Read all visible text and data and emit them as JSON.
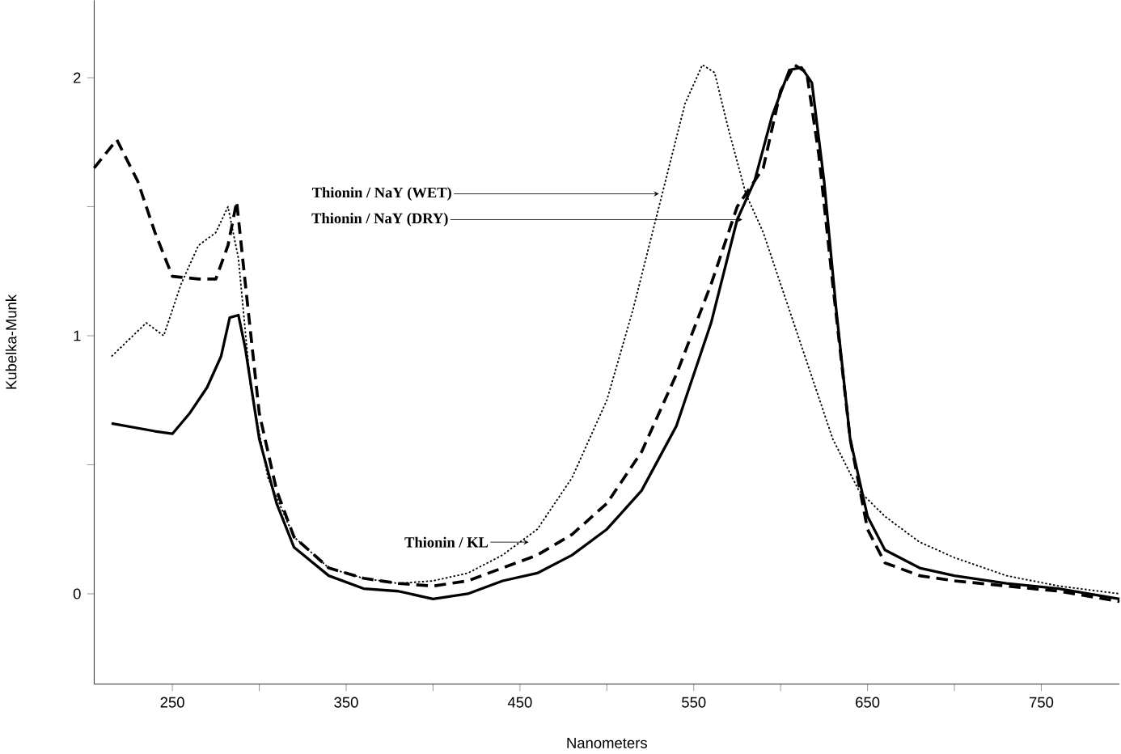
{
  "chart_data": {
    "type": "line",
    "xlabel": "Nanometers",
    "ylabel": "Kubelka-Munk",
    "xlim": [
      205,
      795
    ],
    "ylim": [
      -0.35,
      2.3
    ],
    "xticks": [
      250,
      {
        "value": 300,
        "label": null
      },
      350,
      {
        "value": 400,
        "label": null
      },
      450,
      {
        "value": 500,
        "label": null
      },
      550,
      {
        "value": 600,
        "label": null
      },
      650,
      {
        "value": 700,
        "label": null
      },
      750
    ],
    "yticks": [
      0,
      {
        "value": 0.5,
        "label": null
      },
      1,
      {
        "value": 1.5,
        "label": null
      },
      2
    ],
    "marker": "none",
    "grid": false,
    "series": [
      {
        "color": "#000000",
        "line_style": "solid",
        "x": [
          215,
          240,
          250,
          260,
          270,
          278,
          283,
          288,
          292,
          300,
          310,
          320,
          340,
          360,
          380,
          400,
          420,
          440,
          460,
          480,
          500,
          520,
          540,
          560,
          575,
          585,
          595,
          605,
          612,
          618,
          625,
          632,
          640,
          650,
          660,
          680,
          700,
          730,
          760,
          795
        ],
        "values": [
          0.66,
          0.63,
          0.62,
          0.7,
          0.8,
          0.92,
          1.07,
          1.08,
          0.95,
          0.6,
          0.35,
          0.18,
          0.07,
          0.02,
          0.01,
          -0.02,
          0.0,
          0.05,
          0.08,
          0.15,
          0.25,
          0.4,
          0.65,
          1.05,
          1.45,
          1.6,
          1.85,
          2.03,
          2.04,
          1.98,
          1.6,
          1.1,
          0.6,
          0.3,
          0.17,
          0.1,
          0.07,
          0.04,
          0.02,
          -0.02
        ]
      },
      {
        "color": "#000000",
        "line_style": "dashed",
        "x": [
          205,
          218,
          230,
          240,
          250,
          265,
          275,
          282,
          287,
          292,
          300,
          310,
          320,
          340,
          360,
          380,
          400,
          420,
          440,
          460,
          480,
          500,
          520,
          540,
          560,
          575,
          590,
          600,
          608,
          615,
          622,
          630,
          640,
          650,
          660,
          680,
          700,
          730,
          760,
          795
        ],
        "values": [
          1.65,
          1.76,
          1.6,
          1.4,
          1.23,
          1.22,
          1.22,
          1.35,
          1.52,
          1.2,
          0.7,
          0.4,
          0.22,
          0.1,
          0.06,
          0.04,
          0.03,
          0.05,
          0.1,
          0.15,
          0.23,
          0.35,
          0.55,
          0.85,
          1.2,
          1.5,
          1.65,
          1.95,
          2.05,
          2.02,
          1.7,
          1.2,
          0.6,
          0.25,
          0.12,
          0.07,
          0.05,
          0.03,
          0.01,
          -0.03
        ]
      },
      {
        "color": "#000000",
        "line_style": "dotted",
        "x": [
          215,
          235,
          245,
          255,
          265,
          275,
          282,
          288,
          295,
          305,
          320,
          340,
          360,
          380,
          400,
          420,
          440,
          460,
          480,
          500,
          515,
          530,
          545,
          555,
          562,
          570,
          580,
          590,
          600,
          615,
          630,
          645,
          660,
          680,
          700,
          730,
          760,
          795
        ],
        "values": [
          0.92,
          1.05,
          1.0,
          1.2,
          1.35,
          1.4,
          1.5,
          1.3,
          0.8,
          0.45,
          0.22,
          0.1,
          0.06,
          0.04,
          0.05,
          0.08,
          0.15,
          0.25,
          0.45,
          0.75,
          1.1,
          1.5,
          1.9,
          2.05,
          2.02,
          1.8,
          1.55,
          1.4,
          1.2,
          0.9,
          0.6,
          0.4,
          0.3,
          0.2,
          0.14,
          0.07,
          0.03,
          0.0
        ]
      }
    ],
    "annotations": [
      {
        "text": "Thionin / NaY (WET)",
        "x": 530,
        "y": 1.55
      },
      {
        "text": "Thionin / NaY (DRY)",
        "x": 578,
        "y": 1.45
      },
      {
        "text": "Thionin / KL",
        "x": 455,
        "y": 0.2
      }
    ]
  }
}
